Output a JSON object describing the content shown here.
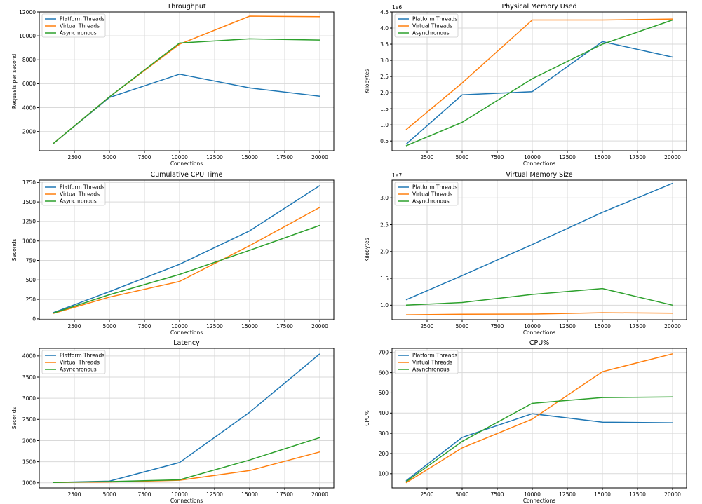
{
  "colors": {
    "platform": "#1f77b4",
    "virtual": "#ff7f0e",
    "async": "#2ca02c",
    "grid": "#d9d9d9",
    "axis": "#000000"
  },
  "chart_data": [
    {
      "type": "line",
      "title": "Throughput",
      "xlabel": "Connections",
      "ylabel": "Requests per second",
      "x": [
        1000,
        5000,
        10000,
        15000,
        20000
      ],
      "xlim": [
        0,
        21000
      ],
      "ylim": [
        400,
        12000
      ],
      "xticks": [
        2500,
        5000,
        7500,
        10000,
        12500,
        15000,
        17500,
        20000
      ],
      "xtick_labels": [
        "2500",
        "5000",
        "7500",
        "10000",
        "12500",
        "15000",
        "17500",
        "20000"
      ],
      "yticks": [
        2000,
        4000,
        6000,
        8000,
        10000,
        12000
      ],
      "ytick_labels": [
        "2000",
        "4000",
        "6000",
        "8000",
        "10000",
        "12000"
      ],
      "offset_text": "",
      "grid": true,
      "legend_loc": "upper left",
      "series": [
        {
          "name": "Platform Threads",
          "color_key": "platform",
          "values": [
            1000,
            4850,
            6800,
            5650,
            4950
          ]
        },
        {
          "name": "Virtual Threads",
          "color_key": "virtual",
          "values": [
            1000,
            4900,
            9300,
            11650,
            11600
          ]
        },
        {
          "name": "Asynchronous",
          "color_key": "async",
          "values": [
            1000,
            4900,
            9400,
            9750,
            9650
          ]
        }
      ]
    },
    {
      "type": "line",
      "title": "Physical Memory Used",
      "xlabel": "Connections",
      "ylabel": "Kilobytes",
      "x": [
        1000,
        5000,
        10000,
        15000,
        20000
      ],
      "xlim": [
        0,
        21000
      ],
      "ylim": [
        0.2,
        4.5
      ],
      "xticks": [
        2500,
        5000,
        7500,
        10000,
        12500,
        15000,
        17500,
        20000
      ],
      "xtick_labels": [
        "2500",
        "5000",
        "7500",
        "10000",
        "12500",
        "15000",
        "17500",
        "20000"
      ],
      "yticks": [
        0.5,
        1.0,
        1.5,
        2.0,
        2.5,
        3.0,
        3.5,
        4.0,
        4.5
      ],
      "ytick_labels": [
        "0.5",
        "1.0",
        "1.5",
        "2.0",
        "2.5",
        "3.0",
        "3.5",
        "4.0",
        "4.5"
      ],
      "offset_text": "1e6",
      "grid": true,
      "legend_loc": "upper left",
      "series": [
        {
          "name": "Platform Threads",
          "color_key": "platform",
          "values": [
            0.4,
            1.93,
            2.03,
            3.58,
            3.1
          ]
        },
        {
          "name": "Virtual Threads",
          "color_key": "virtual",
          "values": [
            0.85,
            2.3,
            4.25,
            4.25,
            4.28
          ]
        },
        {
          "name": "Asynchronous",
          "color_key": "async",
          "values": [
            0.35,
            1.08,
            2.43,
            3.5,
            4.25
          ]
        }
      ]
    },
    {
      "type": "line",
      "title": "Cumulative CPU Time",
      "xlabel": "Connections",
      "ylabel": "Seconds",
      "x": [
        1000,
        5000,
        10000,
        15000,
        20000
      ],
      "xlim": [
        0,
        21000
      ],
      "ylim": [
        -10,
        1780
      ],
      "xticks": [
        2500,
        5000,
        7500,
        10000,
        12500,
        15000,
        17500,
        20000
      ],
      "xtick_labels": [
        "2500",
        "5000",
        "7500",
        "10000",
        "12500",
        "15000",
        "17500",
        "20000"
      ],
      "yticks": [
        0,
        250,
        500,
        750,
        1000,
        1250,
        1500,
        1750
      ],
      "ytick_labels": [
        "0",
        "250",
        "500",
        "750",
        "1000",
        "1250",
        "1500",
        "1750"
      ],
      "offset_text": "",
      "grid": true,
      "legend_loc": "upper left",
      "series": [
        {
          "name": "Platform Threads",
          "color_key": "platform",
          "values": [
            80,
            350,
            700,
            1130,
            1710
          ]
        },
        {
          "name": "Virtual Threads",
          "color_key": "virtual",
          "values": [
            70,
            280,
            480,
            940,
            1430
          ]
        },
        {
          "name": "Asynchronous",
          "color_key": "async",
          "values": [
            75,
            310,
            570,
            880,
            1200
          ]
        }
      ]
    },
    {
      "type": "line",
      "title": "Virtual Memory Size",
      "xlabel": "Connections",
      "ylabel": "Kilobytes",
      "x": [
        1000,
        5000,
        10000,
        15000,
        20000
      ],
      "xlim": [
        0,
        21000
      ],
      "ylim": [
        0.73,
        3.33
      ],
      "xticks": [
        2500,
        5000,
        7500,
        10000,
        12500,
        15000,
        17500,
        20000
      ],
      "xtick_labels": [
        "2500",
        "5000",
        "7500",
        "10000",
        "12500",
        "15000",
        "17500",
        "20000"
      ],
      "yticks": [
        1.0,
        1.5,
        2.0,
        2.5,
        3.0
      ],
      "ytick_labels": [
        "1.0",
        "1.5",
        "2.0",
        "2.5",
        "3.0"
      ],
      "offset_text": "1e7",
      "grid": true,
      "legend_loc": "upper left",
      "series": [
        {
          "name": "Platform Threads",
          "color_key": "platform",
          "values": [
            1.1,
            1.55,
            2.13,
            2.73,
            3.27
          ]
        },
        {
          "name": "Virtual Threads",
          "color_key": "virtual",
          "values": [
            0.82,
            0.83,
            0.835,
            0.86,
            0.85
          ]
        },
        {
          "name": "Asynchronous",
          "color_key": "async",
          "values": [
            1.0,
            1.05,
            1.2,
            1.31,
            1.0
          ]
        }
      ]
    },
    {
      "type": "line",
      "title": "Latency",
      "xlabel": "Connections",
      "ylabel": "Seconds",
      "x": [
        1000,
        5000,
        10000,
        15000,
        20000
      ],
      "xlim": [
        0,
        21000
      ],
      "ylim": [
        880,
        4180
      ],
      "xticks": [
        2500,
        5000,
        7500,
        10000,
        12500,
        15000,
        17500,
        20000
      ],
      "xtick_labels": [
        "2500",
        "5000",
        "7500",
        "10000",
        "12500",
        "15000",
        "17500",
        "20000"
      ],
      "yticks": [
        1000,
        1500,
        2000,
        2500,
        3000,
        3500,
        4000
      ],
      "ytick_labels": [
        "1000",
        "1500",
        "2000",
        "2500",
        "3000",
        "3500",
        "4000"
      ],
      "offset_text": "",
      "grid": true,
      "legend_loc": "upper left",
      "series": [
        {
          "name": "Platform Threads",
          "color_key": "platform",
          "values": [
            1010,
            1040,
            1480,
            2670,
            4050
          ]
        },
        {
          "name": "Virtual Threads",
          "color_key": "virtual",
          "values": [
            1010,
            1020,
            1060,
            1290,
            1730
          ]
        },
        {
          "name": "Asynchronous",
          "color_key": "async",
          "values": [
            1010,
            1030,
            1070,
            1540,
            2070
          ]
        }
      ]
    },
    {
      "type": "line",
      "title": "CPU%",
      "xlabel": "Connections",
      "ylabel": "CPU%",
      "x": [
        1000,
        5000,
        10000,
        15000,
        20000
      ],
      "xlim": [
        0,
        21000
      ],
      "ylim": [
        30,
        720
      ],
      "xticks": [
        2500,
        5000,
        7500,
        10000,
        12500,
        15000,
        17500,
        20000
      ],
      "xtick_labels": [
        "2500",
        "5000",
        "7500",
        "10000",
        "12500",
        "15000",
        "17500",
        "20000"
      ],
      "yticks": [
        100,
        200,
        300,
        400,
        500,
        600,
        700
      ],
      "ytick_labels": [
        "100",
        "200",
        "300",
        "400",
        "500",
        "600",
        "700"
      ],
      "offset_text": "",
      "grid": true,
      "legend_loc": "upper left",
      "series": [
        {
          "name": "Platform Threads",
          "color_key": "platform",
          "values": [
            65,
            280,
            397,
            355,
            352
          ]
        },
        {
          "name": "Virtual Threads",
          "color_key": "virtual",
          "values": [
            55,
            228,
            370,
            605,
            693
          ]
        },
        {
          "name": "Asynchronous",
          "color_key": "async",
          "values": [
            60,
            260,
            448,
            477,
            480
          ]
        }
      ]
    }
  ]
}
